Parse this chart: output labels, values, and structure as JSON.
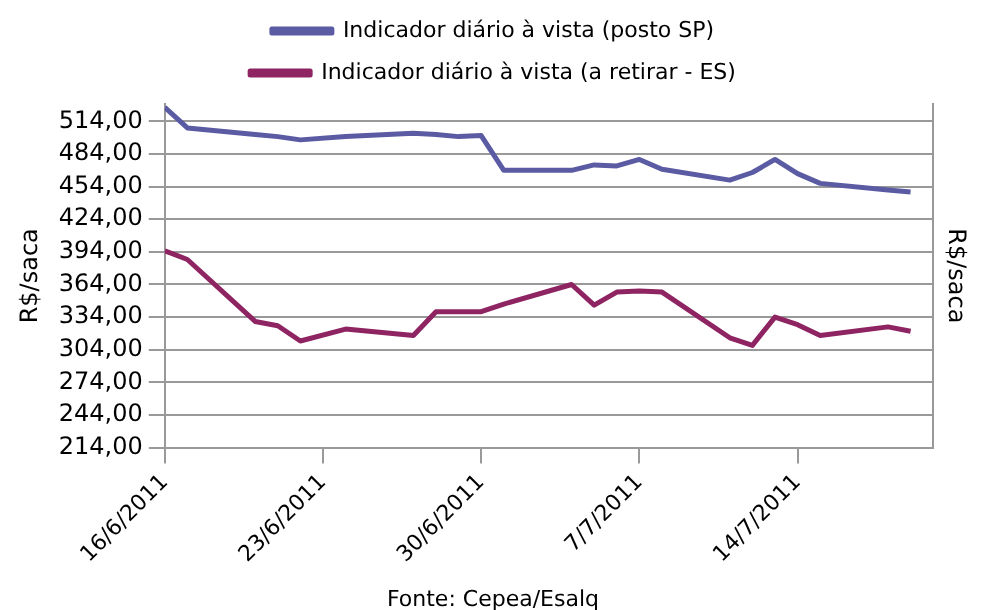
{
  "chart_data": {
    "type": "line",
    "ylabel": "R$/saca",
    "y2label": "R$/saca",
    "annotations": [
      "Fonte: Cepea/Esalq"
    ],
    "x": [
      "2011-06-16",
      "2011-06-17",
      "2011-06-20",
      "2011-06-21",
      "2011-06-22",
      "2011-06-24",
      "2011-06-27",
      "2011-06-28",
      "2011-06-29",
      "2011-06-30",
      "2011-07-01",
      "2011-07-04",
      "2011-07-05",
      "2011-07-06",
      "2011-07-07",
      "2011-07-08",
      "2011-07-11",
      "2011-07-12",
      "2011-07-13",
      "2011-07-14",
      "2011-07-15",
      "2011-07-18",
      "2011-07-19"
    ],
    "series": [
      {
        "name": "Indicador diário à vista (posto SP)",
        "color": "#5b5ba3",
        "values": [
          527,
          508,
          502,
          500,
          497,
          500,
          503,
          502,
          500,
          501,
          469,
          469,
          474,
          473,
          479,
          470,
          460,
          467,
          479,
          466,
          457,
          451,
          449
        ]
      },
      {
        "name": "Indicador diário à vista (a retirar - ES)",
        "color": "#8e2462",
        "values": [
          395,
          387,
          330,
          326,
          312,
          323,
          317,
          339,
          339,
          339,
          346,
          364,
          345,
          357,
          358,
          357,
          315,
          308,
          334,
          327,
          317,
          325,
          321
        ]
      }
    ],
    "xlim": [
      "2011-06-16",
      "2011-07-20"
    ],
    "xticks": [
      {
        "value": "2011-06-16",
        "label": "16/6/2011"
      },
      {
        "value": "2011-06-23",
        "label": "23/6/2011"
      },
      {
        "value": "2011-06-30",
        "label": "30/6/2011"
      },
      {
        "value": "2011-07-07",
        "label": "7/7/2011"
      },
      {
        "value": "2011-07-14",
        "label": "14/7/2011"
      }
    ],
    "ylim": [
      214,
      530
    ],
    "yticks": [
      {
        "value": 214,
        "label": "214,00"
      },
      {
        "value": 244,
        "label": "244,00"
      },
      {
        "value": 274,
        "label": "274,00"
      },
      {
        "value": 304,
        "label": "304,00"
      },
      {
        "value": 334,
        "label": "334,00"
      },
      {
        "value": 364,
        "label": "364,00"
      },
      {
        "value": 394,
        "label": "394,00"
      },
      {
        "value": 424,
        "label": "424,00"
      },
      {
        "value": 454,
        "label": "454,00"
      },
      {
        "value": 484,
        "label": "484,00"
      },
      {
        "value": 514,
        "label": "514,00"
      }
    ],
    "grid": "y",
    "legend": "top"
  }
}
